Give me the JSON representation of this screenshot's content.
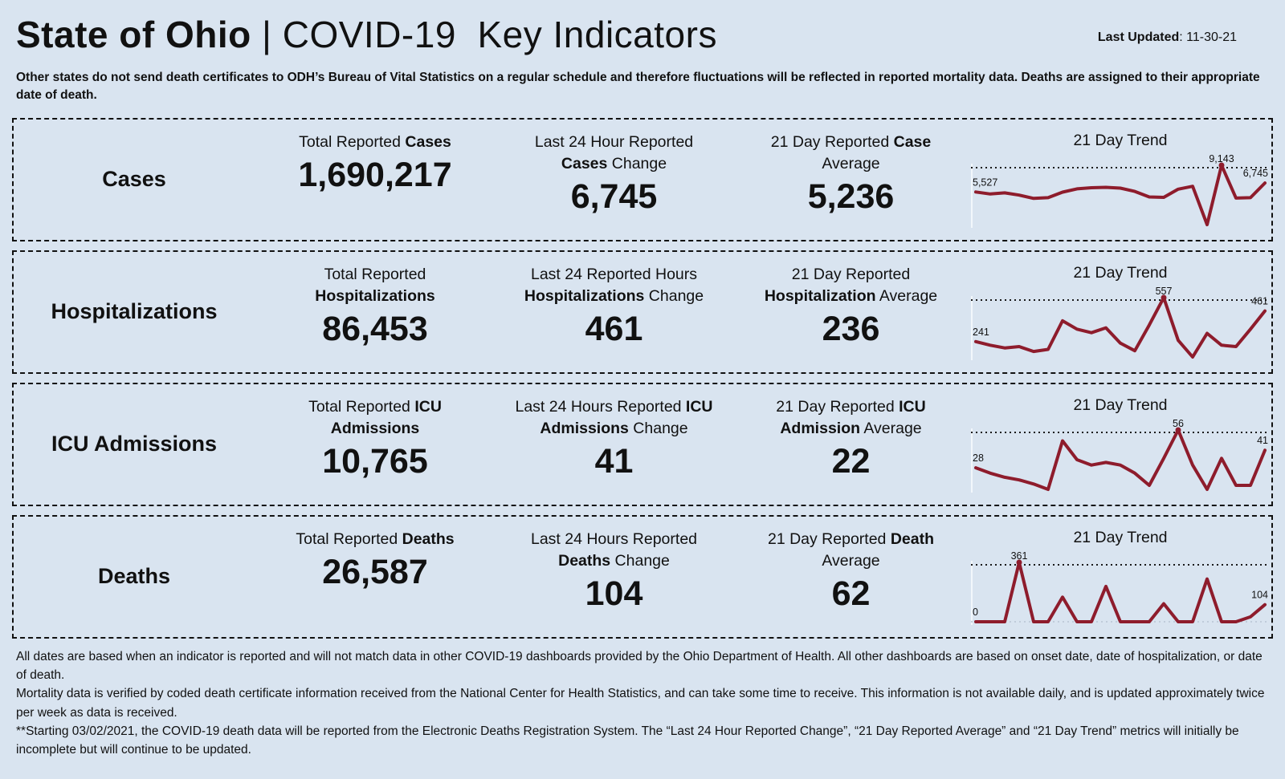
{
  "header": {
    "title_bold": "State of Ohio",
    "title_rest": " | COVID-19  Key Indicators",
    "last_updated_label": "Last Updated",
    "last_updated_value": ": 11-30-21"
  },
  "disclaimer": "Other states do not send death certificates to ODH’s Bureau of Vital Statistics on a regular schedule and therefore fluctuations will be reflected in reported mortality data. Deaths are assigned to their appropriate date of death.",
  "sections": [
    {
      "label": "Cases",
      "stats": [
        {
          "heading": [
            {
              "t": "Total Reported ",
              "b": 0
            },
            {
              "t": "Cases",
              "b": 1
            }
          ],
          "value": "1,690,217"
        },
        {
          "heading": [
            {
              "t": "Last 24 Hour Reported ",
              "b": 0
            },
            {
              "t": "Cases",
              "b": 1
            },
            {
              "t": " Change",
              "b": 0
            }
          ],
          "value": "6,745"
        },
        {
          "heading": [
            {
              "t": "21 Day Reported ",
              "b": 0
            },
            {
              "t": "Case",
              "b": 1
            },
            {
              "t": " Average",
              "b": 0
            }
          ],
          "value": "5,236"
        }
      ]
    },
    {
      "label": "Hospitalizations",
      "stats": [
        {
          "heading": [
            {
              "t": "Total Reported ",
              "b": 0
            },
            {
              "t": "Hospitalizations",
              "b": 1
            }
          ],
          "value": "86,453"
        },
        {
          "heading": [
            {
              "t": "Last 24 Reported Hours ",
              "b": 0
            },
            {
              "t": "Hospitalizations",
              "b": 1
            },
            {
              "t": " Change",
              "b": 0
            }
          ],
          "value": "461"
        },
        {
          "heading": [
            {
              "t": "21 Day Reported ",
              "b": 0
            },
            {
              "t": "Hospitalization",
              "b": 1
            },
            {
              "t": " Average",
              "b": 0
            }
          ],
          "value": "236"
        }
      ]
    },
    {
      "label": "ICU Admissions",
      "stats": [
        {
          "heading": [
            {
              "t": "Total Reported ",
              "b": 0
            },
            {
              "t": "ICU Admissions",
              "b": 1
            }
          ],
          "value": "10,765"
        },
        {
          "heading": [
            {
              "t": "Last 24 Hours Reported ",
              "b": 0
            },
            {
              "t": "ICU Admissions",
              "b": 1
            },
            {
              "t": " Change",
              "b": 0
            }
          ],
          "value": "41"
        },
        {
          "heading": [
            {
              "t": "21 Day Reported ",
              "b": 0
            },
            {
              "t": "ICU Admission",
              "b": 1
            },
            {
              "t": " Average",
              "b": 0
            }
          ],
          "value": "22"
        }
      ]
    },
    {
      "label": "Deaths",
      "stats": [
        {
          "heading": [
            {
              "t": "Total Reported ",
              "b": 0
            },
            {
              "t": "Deaths",
              "b": 1
            }
          ],
          "value": "26,587"
        },
        {
          "heading": [
            {
              "t": "Last 24 Hours Reported ",
              "b": 0
            },
            {
              "t": "Deaths",
              "b": 1
            },
            {
              "t": " Change",
              "b": 0
            }
          ],
          "value": "104"
        },
        {
          "heading": [
            {
              "t": "21 Day Reported ",
              "b": 0
            },
            {
              "t": "Death",
              "b": 1
            },
            {
              "t": " Average",
              "b": 0
            }
          ],
          "value": "62"
        }
      ]
    }
  ],
  "chart_data": [
    {
      "type": "line",
      "metric": "Cases",
      "title": "21 Day Trend",
      "x_description": "most recent 21 reported days",
      "values": [
        5527,
        5250,
        5400,
        5100,
        4650,
        4750,
        5500,
        5950,
        6100,
        6150,
        6050,
        5600,
        4850,
        4800,
        5900,
        6300,
        1100,
        9143,
        4700,
        4750,
        6745
      ],
      "start_label": "5,527",
      "peak_label": "9,143",
      "end_label": "6,745",
      "baseline_dotted": false
    },
    {
      "type": "line",
      "metric": "Hospitalizations",
      "title": "21 Day Trend",
      "x_description": "most recent 21 reported days",
      "values": [
        241,
        215,
        195,
        205,
        170,
        185,
        390,
        330,
        305,
        340,
        230,
        175,
        360,
        557,
        250,
        130,
        300,
        215,
        205,
        330,
        461
      ],
      "start_label": "241",
      "peak_label": "557",
      "end_label": "461",
      "baseline_dotted": false
    },
    {
      "type": "line",
      "metric": "ICU Admissions",
      "title": "21 Day Trend",
      "x_description": "most recent 21 reported days",
      "values": [
        28,
        24,
        21,
        19,
        16,
        12,
        48,
        34,
        30,
        32,
        30,
        24,
        15,
        35,
        56,
        30,
        12,
        35,
        15,
        15,
        41
      ],
      "start_label": "28",
      "peak_label": "56",
      "end_label": "41",
      "baseline_dotted": false
    },
    {
      "type": "line",
      "metric": "Deaths",
      "title": "21 Day Trend",
      "x_description": "most recent 21 reported days",
      "values": [
        0,
        0,
        0,
        361,
        0,
        0,
        150,
        0,
        0,
        215,
        0,
        0,
        0,
        110,
        0,
        0,
        260,
        0,
        0,
        30,
        104
      ],
      "start_label": "0",
      "peak_label": "361",
      "end_label": "104",
      "baseline_dotted": true
    }
  ],
  "footer": {
    "paragraphs": [
      "All dates are based when an indicator is reported and will not match data in other COVID-19 dashboards provided by the Ohio Department of Health. All other dashboards are based on onset date, date of hospitalization, or date of death.",
      "Mortality data is verified by coded death certificate information received from the National Center for Health Statistics, and can take some time to receive. This information is not available daily, and is updated approximately twice per week as data is received.",
      "**Starting 03/02/2021, the COVID-19 death data will be reported from the Electronic Deaths Registration System. The “Last 24 Hour Reported Change”, “21 Day Reported Average” and “21 Day Trend” metrics will initially be incomplete but will continue to be updated."
    ]
  },
  "colors": {
    "background": "#d9e4f0",
    "panel_border": "#111111",
    "text": "#111111",
    "trend_line": "#8e1c2c",
    "reference_dotted": "#1a1a1a"
  }
}
